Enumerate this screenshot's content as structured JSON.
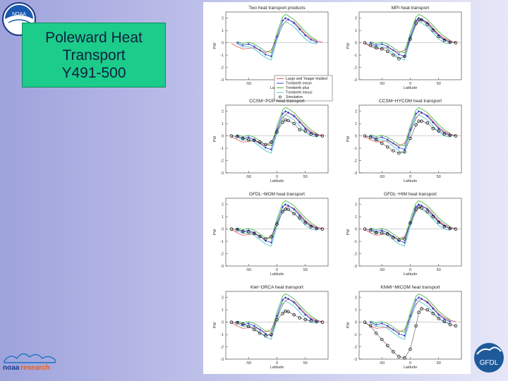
{
  "slide": {
    "title_lines": [
      "Poleward Heat",
      "Transport",
      "Y491-500"
    ],
    "logo_top_text": "NOAA",
    "logo_bottom_left": {
      "word1": "noaa",
      "word2": "research"
    },
    "logo_bottom_right": "GFDL",
    "colors": {
      "title_box": "#1ccc8a",
      "background": "#b5b8e6"
    }
  },
  "chart_data": [
    {
      "type": "line",
      "title": "Two heat transport products",
      "xlabel": "Latitude",
      "ylabel": "PW",
      "xlim": [
        -90,
        90
      ],
      "ylim": [
        -3,
        2.5
      ],
      "xticks": [
        -50,
        0,
        50
      ],
      "yticks": [
        2,
        1,
        0,
        -1,
        -2,
        -3
      ],
      "legend": {
        "placement": "bottom-right",
        "entries": [
          "Large and Yeager implied",
          "Trenberth mean",
          "Trenberth plus",
          "Trenberth minus",
          "Simulation"
        ]
      },
      "series": [
        {
          "name": "Large and Yeager implied",
          "color": "#e05050",
          "style": "line",
          "x": [
            -80,
            -70,
            -60,
            -50,
            -40,
            -30,
            -20,
            -10,
            0,
            10,
            15,
            20,
            30,
            40,
            50,
            60,
            70,
            80
          ],
          "y": [
            -0.05,
            -0.3,
            -0.5,
            -0.45,
            -0.4,
            -0.6,
            -0.8,
            -0.6,
            0.4,
            1.4,
            1.75,
            1.85,
            1.7,
            1.2,
            0.7,
            0.35,
            0.15,
            0.05
          ]
        },
        {
          "name": "Trenberth mean",
          "color": "#2030d0",
          "style": "marker",
          "x": [
            -70,
            -60,
            -50,
            -40,
            -30,
            -20,
            -10,
            0,
            10,
            15,
            20,
            30,
            40,
            50,
            60,
            70
          ],
          "y": [
            0,
            -0.2,
            -0.1,
            -0.3,
            -0.6,
            -0.95,
            -1.1,
            0.5,
            1.8,
            2.0,
            1.9,
            1.6,
            1.1,
            0.6,
            0.25,
            0.05
          ]
        },
        {
          "name": "Trenberth plus",
          "color": "#30b030",
          "style": "line",
          "x": [
            -70,
            -60,
            -50,
            -40,
            -30,
            -20,
            -10,
            0,
            10,
            15,
            20,
            30,
            40,
            50,
            60,
            70
          ],
          "y": [
            0.1,
            -0.05,
            0.05,
            -0.1,
            -0.4,
            -0.7,
            -0.8,
            0.8,
            2.1,
            2.3,
            2.2,
            1.9,
            1.4,
            0.9,
            0.5,
            0.2
          ]
        },
        {
          "name": "Trenberth minus",
          "color": "#40c0c0",
          "style": "line",
          "x": [
            -70,
            -60,
            -50,
            -40,
            -30,
            -20,
            -10,
            0,
            10,
            15,
            20,
            30,
            40,
            50,
            60,
            70
          ],
          "y": [
            -0.1,
            -0.35,
            -0.3,
            -0.5,
            -0.85,
            -1.2,
            -1.4,
            0.2,
            1.5,
            1.7,
            1.6,
            1.3,
            0.8,
            0.3,
            0,
            -0.1
          ]
        }
      ]
    },
    {
      "type": "line",
      "title": "MPI heat transport",
      "xlabel": "Latitude",
      "ylabel": "PW",
      "xlim": [
        -90,
        90
      ],
      "ylim": [
        -3,
        2.5
      ],
      "xticks": [
        -50,
        0,
        50
      ],
      "yticks": [
        2,
        1,
        0,
        -1,
        -2,
        -3
      ],
      "series": [
        {
          "name": "Simulation",
          "color": "#000000",
          "style": "circle",
          "x": [
            -80,
            -70,
            -60,
            -50,
            -40,
            -30,
            -20,
            -10,
            0,
            10,
            15,
            20,
            30,
            40,
            50,
            60,
            70,
            80
          ],
          "y": [
            0,
            -0.2,
            -0.4,
            -0.5,
            -0.7,
            -1.0,
            -1.3,
            -1.1,
            0.3,
            1.6,
            1.9,
            1.85,
            1.5,
            1.0,
            0.5,
            0.2,
            0.05,
            0
          ]
        }
      ]
    },
    {
      "type": "line",
      "title": "CCSM−POP heat transport",
      "xlabel": "Latitude",
      "ylabel": "PW",
      "xlim": [
        -90,
        90
      ],
      "ylim": [
        -3,
        2.5
      ],
      "xticks": [
        -50,
        0,
        50
      ],
      "yticks": [
        2,
        1,
        0,
        -1,
        -2,
        -3
      ],
      "series": [
        {
          "name": "Simulation",
          "color": "#000000",
          "style": "circle",
          "x": [
            -80,
            -70,
            -60,
            -50,
            -40,
            -30,
            -20,
            -10,
            0,
            10,
            15,
            20,
            30,
            40,
            50,
            60,
            70,
            80
          ],
          "y": [
            0,
            -0.05,
            -0.2,
            -0.3,
            -0.35,
            -0.5,
            -0.7,
            -0.5,
            0.3,
            1.1,
            1.3,
            1.25,
            1.0,
            0.5,
            0.4,
            0.15,
            0.05,
            0
          ]
        }
      ]
    },
    {
      "type": "line",
      "title": "CCSM−HYCOM heat transport",
      "xlabel": "Latitude",
      "ylabel": "PW",
      "xlim": [
        -90,
        90
      ],
      "ylim": [
        -3,
        2.5
      ],
      "xticks": [
        -50,
        0,
        50
      ],
      "yticks": [
        2,
        1,
        0,
        -1,
        -2,
        -3
      ],
      "series": [
        {
          "name": "Simulation",
          "color": "#000000",
          "style": "circle",
          "x": [
            -80,
            -70,
            -60,
            -50,
            -40,
            -30,
            -20,
            -10,
            0,
            10,
            15,
            20,
            30,
            40,
            50,
            60,
            70,
            80
          ],
          "y": [
            0,
            -0.1,
            -0.3,
            -0.6,
            -0.9,
            -1.2,
            -1.4,
            -1.3,
            -0.2,
            0.9,
            1.2,
            1.2,
            1.05,
            0.6,
            0.4,
            0.15,
            0.05,
            0
          ]
        }
      ]
    },
    {
      "type": "line",
      "title": "GFDL−MOM heat transport",
      "xlabel": "Latitude",
      "ylabel": "PW",
      "xlim": [
        -90,
        90
      ],
      "ylim": [
        -3,
        2.5
      ],
      "xticks": [
        -50,
        0,
        50
      ],
      "yticks": [
        2,
        1,
        0,
        -1,
        -2,
        -3
      ],
      "series": [
        {
          "name": "Simulation",
          "color": "#000000",
          "style": "circle",
          "x": [
            -80,
            -70,
            -60,
            -50,
            -40,
            -30,
            -20,
            -10,
            0,
            10,
            15,
            20,
            30,
            40,
            50,
            60,
            70,
            80
          ],
          "y": [
            0,
            -0.05,
            -0.2,
            -0.25,
            -0.35,
            -0.6,
            -0.8,
            -0.6,
            0.4,
            1.4,
            1.6,
            1.6,
            1.25,
            0.9,
            0.5,
            0.2,
            0.05,
            0
          ]
        }
      ]
    },
    {
      "type": "line",
      "title": "GFDL−HIM heat transport",
      "xlabel": "Latitude",
      "ylabel": "PW",
      "xlim": [
        -90,
        90
      ],
      "ylim": [
        -3,
        2.5
      ],
      "xticks": [
        -50,
        0,
        50
      ],
      "yticks": [
        2,
        1,
        0,
        -1,
        -2,
        -3
      ],
      "series": [
        {
          "name": "Simulation",
          "color": "#000000",
          "style": "circle",
          "x": [
            -80,
            -70,
            -60,
            -50,
            -40,
            -30,
            -20,
            -10,
            0,
            10,
            15,
            20,
            30,
            40,
            50,
            60,
            70,
            80
          ],
          "y": [
            0,
            -0.1,
            -0.3,
            -0.3,
            -0.4,
            -0.7,
            -0.9,
            -0.8,
            0.5,
            1.6,
            1.8,
            1.7,
            1.4,
            1.0,
            0.55,
            0.2,
            0.05,
            0
          ]
        }
      ]
    },
    {
      "type": "line",
      "title": "Kiel−ORCA heat transport",
      "xlabel": "Latitude",
      "ylabel": "PW",
      "xlim": [
        -90,
        90
      ],
      "ylim": [
        -3,
        2.5
      ],
      "xticks": [
        -50,
        0,
        50
      ],
      "yticks": [
        2,
        1,
        0,
        -1,
        -2,
        -3
      ],
      "series": [
        {
          "name": "Simulation",
          "color": "#000000",
          "style": "circle",
          "x": [
            -80,
            -70,
            -60,
            -50,
            -40,
            -30,
            -20,
            -10,
            0,
            10,
            15,
            20,
            30,
            40,
            50,
            60,
            70,
            80
          ],
          "y": [
            0,
            -0.05,
            -0.15,
            -0.35,
            -0.6,
            -0.9,
            -1.1,
            -1.0,
            0.2,
            0.7,
            0.9,
            0.85,
            0.6,
            0.35,
            0.2,
            0.1,
            0.05,
            0
          ]
        }
      ]
    },
    {
      "type": "line",
      "title": "KNMI−MICOM heat transport",
      "xlabel": "Latitude",
      "ylabel": "PW",
      "xlim": [
        -90,
        90
      ],
      "ylim": [
        -3,
        2.5
      ],
      "xticks": [
        -50,
        0,
        50
      ],
      "yticks": [
        2,
        1,
        0,
        -1,
        -2,
        -3
      ],
      "series": [
        {
          "name": "Simulation",
          "color": "#000000",
          "style": "circle",
          "x": [
            -80,
            -70,
            -60,
            -50,
            -40,
            -30,
            -20,
            -10,
            0,
            10,
            15,
            20,
            30,
            40,
            50,
            60,
            70,
            80
          ],
          "y": [
            0,
            -0.3,
            -0.9,
            -1.4,
            -1.9,
            -2.4,
            -2.8,
            -2.9,
            -2.2,
            -0.3,
            0.8,
            1.1,
            1.0,
            0.7,
            0.3,
            0.05,
            -0.2,
            -0.3
          ]
        }
      ]
    }
  ]
}
